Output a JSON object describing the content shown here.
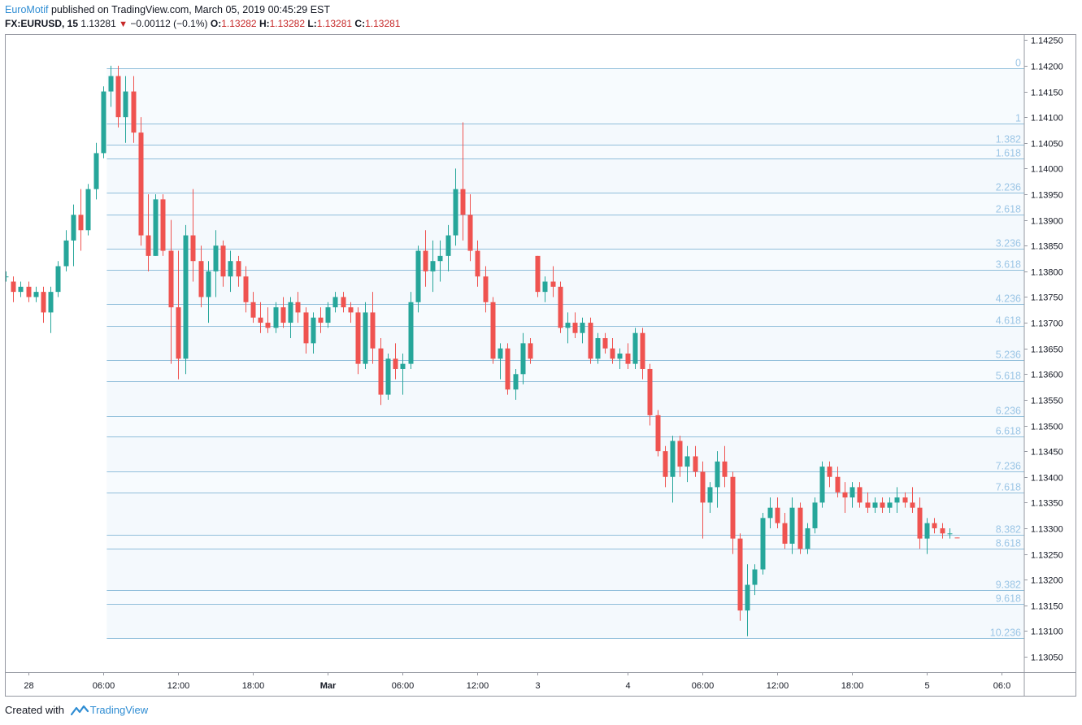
{
  "header": {
    "author": "EuroMotif",
    "published_text": "published on TradingView.com, March 05, 2019 00:45:29 EST",
    "symbol_interval": "FX:EURUSD, 15",
    "last_price": "1.13281",
    "change_arrow": "▼",
    "change": "−0.00112 (−0.1%)",
    "o_label": "O:",
    "o_value": "1.13282",
    "h_label": "H:",
    "h_value": "1.13282",
    "l_label": "L:",
    "l_value": "1.13281",
    "c_label": "C:",
    "c_value": "1.13281"
  },
  "footer": {
    "created_with": "Created with",
    "brand": "TradingView"
  },
  "colors": {
    "up": "#26a69a",
    "down": "#ef5350",
    "fib_line": "#91bfdb",
    "fib_label": "#9cc6e6",
    "fib_band": "#f4f9fd",
    "axis_text": "#131722",
    "brand_blue": "#2f8dd3"
  },
  "chart_data": {
    "type": "candlestick",
    "symbol": "FX:EURUSD",
    "interval": "15",
    "y_axis": {
      "range": [
        1.1302,
        1.1426
      ],
      "ticks": [
        "1.14250",
        "1.14200",
        "1.14150",
        "1.14100",
        "1.14050",
        "1.14000",
        "1.13950",
        "1.13900",
        "1.13850",
        "1.13800",
        "1.13750",
        "1.13700",
        "1.13650",
        "1.13600",
        "1.13550",
        "1.13500",
        "1.13450",
        "1.13400",
        "1.13350",
        "1.13300",
        "1.13250",
        "1.13200",
        "1.13150",
        "1.13100",
        "1.13050"
      ]
    },
    "x_axis": {
      "bar_range": [
        -3,
        133
      ],
      "ticks": [
        {
          "label": "28",
          "bar": 0,
          "bold": false
        },
        {
          "label": "06:00",
          "bar": 10,
          "bold": false
        },
        {
          "label": "12:00",
          "bar": 20,
          "bold": false
        },
        {
          "label": "18:00",
          "bar": 30,
          "bold": false
        },
        {
          "label": "Mar",
          "bar": 40,
          "bold": true
        },
        {
          "label": "06:00",
          "bar": 50,
          "bold": false
        },
        {
          "label": "12:00",
          "bar": 60,
          "bold": false
        },
        {
          "label": "3",
          "bar": 68,
          "bold": false
        },
        {
          "label": "4",
          "bar": 80,
          "bold": false
        },
        {
          "label": "06:00",
          "bar": 90,
          "bold": false
        },
        {
          "label": "12:00",
          "bar": 100,
          "bold": false
        },
        {
          "label": "18:00",
          "bar": 110,
          "bold": false
        },
        {
          "label": "5",
          "bar": 120,
          "bold": false
        },
        {
          "label": "06:0",
          "bar": 130,
          "bold": false
        }
      ]
    },
    "fibonacci": {
      "start_bar": 11,
      "levels": [
        {
          "label": "0",
          "price": 1.14195
        },
        {
          "label": "1",
          "price": 1.14087
        },
        {
          "label": "1.382",
          "price": 1.14046
        },
        {
          "label": "1.618",
          "price": 1.1402
        },
        {
          "label": "2.236",
          "price": 1.13953
        },
        {
          "label": "2.618",
          "price": 1.13911
        },
        {
          "label": "3.236",
          "price": 1.13844
        },
        {
          "label": "3.618",
          "price": 1.13803
        },
        {
          "label": "4.236",
          "price": 1.13736
        },
        {
          "label": "4.618",
          "price": 1.13694
        },
        {
          "label": "5.236",
          "price": 1.13627
        },
        {
          "label": "5.618",
          "price": 1.13586
        },
        {
          "label": "6.236",
          "price": 1.13519
        },
        {
          "label": "6.618",
          "price": 1.13478
        },
        {
          "label": "7.236",
          "price": 1.13411
        },
        {
          "label": "7.618",
          "price": 1.1337
        },
        {
          "label": "8.382",
          "price": 1.13287
        },
        {
          "label": "8.618",
          "price": 1.13261
        },
        {
          "label": "9.382",
          "price": 1.13179
        },
        {
          "label": "9.618",
          "price": 1.13153
        },
        {
          "label": "10.236",
          "price": 1.13086
        }
      ]
    },
    "candles": [
      {
        "i": -3,
        "o": 1.1379,
        "h": 1.138,
        "l": 1.1378,
        "c": 1.1379
      },
      {
        "i": -2,
        "o": 1.1378,
        "h": 1.1379,
        "l": 1.1374,
        "c": 1.1376
      },
      {
        "i": -1,
        "o": 1.1376,
        "h": 1.1378,
        "l": 1.1375,
        "c": 1.1377
      },
      {
        "i": 0,
        "o": 1.1377,
        "h": 1.1378,
        "l": 1.1374,
        "c": 1.1375
      },
      {
        "i": 1,
        "o": 1.1375,
        "h": 1.1377,
        "l": 1.1374,
        "c": 1.1376
      },
      {
        "i": 2,
        "o": 1.1376,
        "h": 1.1377,
        "l": 1.137,
        "c": 1.1372
      },
      {
        "i": 3,
        "o": 1.1372,
        "h": 1.1377,
        "l": 1.1368,
        "c": 1.1376
      },
      {
        "i": 4,
        "o": 1.1376,
        "h": 1.1382,
        "l": 1.1375,
        "c": 1.1381
      },
      {
        "i": 5,
        "o": 1.1381,
        "h": 1.1388,
        "l": 1.138,
        "c": 1.1386
      },
      {
        "i": 6,
        "o": 1.1386,
        "h": 1.1393,
        "l": 1.1381,
        "c": 1.1391
      },
      {
        "i": 7,
        "o": 1.1391,
        "h": 1.1396,
        "l": 1.1384,
        "c": 1.1388
      },
      {
        "i": 8,
        "o": 1.1388,
        "h": 1.1397,
        "l": 1.1387,
        "c": 1.1396
      },
      {
        "i": 9,
        "o": 1.1396,
        "h": 1.1405,
        "l": 1.1394,
        "c": 1.1403
      },
      {
        "i": 10,
        "o": 1.1403,
        "h": 1.1416,
        "l": 1.1402,
        "c": 1.1415
      },
      {
        "i": 11,
        "o": 1.1415,
        "h": 1.142,
        "l": 1.1412,
        "c": 1.1418
      },
      {
        "i": 12,
        "o": 1.1418,
        "h": 1.142,
        "l": 1.1408,
        "c": 1.141
      },
      {
        "i": 13,
        "o": 1.141,
        "h": 1.1418,
        "l": 1.1405,
        "c": 1.1415
      },
      {
        "i": 14,
        "o": 1.1415,
        "h": 1.1418,
        "l": 1.1405,
        "c": 1.1407
      },
      {
        "i": 15,
        "o": 1.1407,
        "h": 1.141,
        "l": 1.1385,
        "c": 1.1387
      },
      {
        "i": 16,
        "o": 1.1387,
        "h": 1.1395,
        "l": 1.138,
        "c": 1.1383
      },
      {
        "i": 17,
        "o": 1.1383,
        "h": 1.1395,
        "l": 1.1383,
        "c": 1.1394
      },
      {
        "i": 18,
        "o": 1.1394,
        "h": 1.1395,
        "l": 1.1383,
        "c": 1.1384
      },
      {
        "i": 19,
        "o": 1.1384,
        "h": 1.139,
        "l": 1.1362,
        "c": 1.1373
      },
      {
        "i": 20,
        "o": 1.1373,
        "h": 1.1384,
        "l": 1.1359,
        "c": 1.1363
      },
      {
        "i": 21,
        "o": 1.1363,
        "h": 1.1389,
        "l": 1.136,
        "c": 1.1387
      },
      {
        "i": 22,
        "o": 1.1387,
        "h": 1.1396,
        "l": 1.1378,
        "c": 1.1382
      },
      {
        "i": 23,
        "o": 1.1382,
        "h": 1.1385,
        "l": 1.1373,
        "c": 1.1375
      },
      {
        "i": 24,
        "o": 1.1375,
        "h": 1.1382,
        "l": 1.137,
        "c": 1.138
      },
      {
        "i": 25,
        "o": 1.138,
        "h": 1.1388,
        "l": 1.1375,
        "c": 1.1385
      },
      {
        "i": 26,
        "o": 1.1385,
        "h": 1.1386,
        "l": 1.1377,
        "c": 1.1379
      },
      {
        "i": 27,
        "o": 1.1379,
        "h": 1.1384,
        "l": 1.1376,
        "c": 1.1382
      },
      {
        "i": 28,
        "o": 1.1382,
        "h": 1.1383,
        "l": 1.1377,
        "c": 1.1379
      },
      {
        "i": 29,
        "o": 1.1379,
        "h": 1.1381,
        "l": 1.1372,
        "c": 1.1374
      },
      {
        "i": 30,
        "o": 1.1374,
        "h": 1.1376,
        "l": 1.137,
        "c": 1.1371
      },
      {
        "i": 31,
        "o": 1.1371,
        "h": 1.1374,
        "l": 1.1368,
        "c": 1.137
      },
      {
        "i": 32,
        "o": 1.137,
        "h": 1.1373,
        "l": 1.1368,
        "c": 1.1369
      },
      {
        "i": 33,
        "o": 1.1369,
        "h": 1.1374,
        "l": 1.1368,
        "c": 1.1373
      },
      {
        "i": 34,
        "o": 1.1373,
        "h": 1.1375,
        "l": 1.1369,
        "c": 1.137
      },
      {
        "i": 35,
        "o": 1.137,
        "h": 1.1375,
        "l": 1.1367,
        "c": 1.1374
      },
      {
        "i": 36,
        "o": 1.1374,
        "h": 1.1376,
        "l": 1.137,
        "c": 1.1372
      },
      {
        "i": 37,
        "o": 1.1372,
        "h": 1.1373,
        "l": 1.1364,
        "c": 1.1366
      },
      {
        "i": 38,
        "o": 1.1366,
        "h": 1.1372,
        "l": 1.1364,
        "c": 1.1371
      },
      {
        "i": 39,
        "o": 1.1371,
        "h": 1.1373,
        "l": 1.1368,
        "c": 1.137
      },
      {
        "i": 40,
        "o": 1.137,
        "h": 1.1374,
        "l": 1.1369,
        "c": 1.1373
      },
      {
        "i": 41,
        "o": 1.1373,
        "h": 1.1376,
        "l": 1.1372,
        "c": 1.1375
      },
      {
        "i": 42,
        "o": 1.1375,
        "h": 1.1376,
        "l": 1.1372,
        "c": 1.1373
      },
      {
        "i": 43,
        "o": 1.1373,
        "h": 1.1374,
        "l": 1.137,
        "c": 1.1372
      },
      {
        "i": 44,
        "o": 1.1372,
        "h": 1.1373,
        "l": 1.136,
        "c": 1.1362
      },
      {
        "i": 45,
        "o": 1.1362,
        "h": 1.1374,
        "l": 1.1361,
        "c": 1.1372
      },
      {
        "i": 46,
        "o": 1.1372,
        "h": 1.1376,
        "l": 1.1362,
        "c": 1.1365
      },
      {
        "i": 47,
        "o": 1.1365,
        "h": 1.1367,
        "l": 1.1354,
        "c": 1.1356
      },
      {
        "i": 48,
        "o": 1.1356,
        "h": 1.1364,
        "l": 1.1355,
        "c": 1.1363
      },
      {
        "i": 49,
        "o": 1.1363,
        "h": 1.1366,
        "l": 1.1359,
        "c": 1.1361
      },
      {
        "i": 50,
        "o": 1.1361,
        "h": 1.1364,
        "l": 1.1356,
        "c": 1.1362
      },
      {
        "i": 51,
        "o": 1.1362,
        "h": 1.1376,
        "l": 1.1361,
        "c": 1.1374
      },
      {
        "i": 52,
        "o": 1.1374,
        "h": 1.1385,
        "l": 1.1372,
        "c": 1.1384
      },
      {
        "i": 53,
        "o": 1.1384,
        "h": 1.1388,
        "l": 1.1377,
        "c": 1.138
      },
      {
        "i": 54,
        "o": 1.138,
        "h": 1.1386,
        "l": 1.1376,
        "c": 1.1382
      },
      {
        "i": 55,
        "o": 1.1382,
        "h": 1.1386,
        "l": 1.1378,
        "c": 1.1383
      },
      {
        "i": 56,
        "o": 1.1383,
        "h": 1.1389,
        "l": 1.138,
        "c": 1.1387
      },
      {
        "i": 57,
        "o": 1.1387,
        "h": 1.14,
        "l": 1.1385,
        "c": 1.1396
      },
      {
        "i": 58,
        "o": 1.1396,
        "h": 1.1409,
        "l": 1.1386,
        "c": 1.1391
      },
      {
        "i": 59,
        "o": 1.1391,
        "h": 1.1395,
        "l": 1.1382,
        "c": 1.1384
      },
      {
        "i": 60,
        "o": 1.1384,
        "h": 1.1386,
        "l": 1.1377,
        "c": 1.1379
      },
      {
        "i": 61,
        "o": 1.1379,
        "h": 1.1381,
        "l": 1.1372,
        "c": 1.1374
      },
      {
        "i": 62,
        "o": 1.1374,
        "h": 1.1375,
        "l": 1.1362,
        "c": 1.1363
      },
      {
        "i": 63,
        "o": 1.1363,
        "h": 1.1366,
        "l": 1.1359,
        "c": 1.1365
      },
      {
        "i": 64,
        "o": 1.1365,
        "h": 1.1366,
        "l": 1.1356,
        "c": 1.1357
      },
      {
        "i": 65,
        "o": 1.1357,
        "h": 1.1361,
        "l": 1.1355,
        "c": 1.136
      },
      {
        "i": 66,
        "o": 1.136,
        "h": 1.1368,
        "l": 1.1358,
        "c": 1.1366
      },
      {
        "i": 67,
        "o": 1.1366,
        "h": 1.1367,
        "l": 1.1362,
        "c": 1.1363
      },
      {
        "i": 68,
        "o": 1.1383,
        "h": 1.1383,
        "l": 1.1375,
        "c": 1.1376
      },
      {
        "i": 69,
        "o": 1.1376,
        "h": 1.1379,
        "l": 1.1374,
        "c": 1.1378
      },
      {
        "i": 70,
        "o": 1.1378,
        "h": 1.1381,
        "l": 1.1375,
        "c": 1.1377
      },
      {
        "i": 71,
        "o": 1.1377,
        "h": 1.1378,
        "l": 1.1368,
        "c": 1.1369
      },
      {
        "i": 72,
        "o": 1.1369,
        "h": 1.1372,
        "l": 1.1366,
        "c": 1.137
      },
      {
        "i": 73,
        "o": 1.137,
        "h": 1.1372,
        "l": 1.1367,
        "c": 1.1368
      },
      {
        "i": 74,
        "o": 1.1368,
        "h": 1.1371,
        "l": 1.1366,
        "c": 1.137
      },
      {
        "i": 75,
        "o": 1.137,
        "h": 1.1371,
        "l": 1.1362,
        "c": 1.1363
      },
      {
        "i": 76,
        "o": 1.1363,
        "h": 1.1368,
        "l": 1.1362,
        "c": 1.1367
      },
      {
        "i": 77,
        "o": 1.1367,
        "h": 1.1368,
        "l": 1.1364,
        "c": 1.1365
      },
      {
        "i": 78,
        "o": 1.1365,
        "h": 1.1367,
        "l": 1.1362,
        "c": 1.1363
      },
      {
        "i": 79,
        "o": 1.1363,
        "h": 1.1365,
        "l": 1.1361,
        "c": 1.1364
      },
      {
        "i": 80,
        "o": 1.1364,
        "h": 1.1366,
        "l": 1.1361,
        "c": 1.1362
      },
      {
        "i": 81,
        "o": 1.1362,
        "h": 1.1369,
        "l": 1.1361,
        "c": 1.1368
      },
      {
        "i": 82,
        "o": 1.1368,
        "h": 1.1369,
        "l": 1.1359,
        "c": 1.1361
      },
      {
        "i": 83,
        "o": 1.1361,
        "h": 1.1362,
        "l": 1.135,
        "c": 1.1352
      },
      {
        "i": 84,
        "o": 1.1352,
        "h": 1.1353,
        "l": 1.1344,
        "c": 1.1345
      },
      {
        "i": 85,
        "o": 1.1345,
        "h": 1.1346,
        "l": 1.1338,
        "c": 1.134
      },
      {
        "i": 86,
        "o": 1.134,
        "h": 1.1348,
        "l": 1.1335,
        "c": 1.1347
      },
      {
        "i": 87,
        "o": 1.1347,
        "h": 1.1348,
        "l": 1.134,
        "c": 1.1342
      },
      {
        "i": 88,
        "o": 1.1342,
        "h": 1.1346,
        "l": 1.1339,
        "c": 1.1344
      },
      {
        "i": 89,
        "o": 1.1344,
        "h": 1.1346,
        "l": 1.134,
        "c": 1.1341
      },
      {
        "i": 90,
        "o": 1.1341,
        "h": 1.1343,
        "l": 1.1328,
        "c": 1.1335
      },
      {
        "i": 91,
        "o": 1.1335,
        "h": 1.1339,
        "l": 1.1333,
        "c": 1.1338
      },
      {
        "i": 92,
        "o": 1.1338,
        "h": 1.1345,
        "l": 1.1334,
        "c": 1.1343
      },
      {
        "i": 93,
        "o": 1.1343,
        "h": 1.1346,
        "l": 1.1338,
        "c": 1.134
      },
      {
        "i": 94,
        "o": 1.134,
        "h": 1.1341,
        "l": 1.1325,
        "c": 1.1328
      },
      {
        "i": 95,
        "o": 1.1328,
        "h": 1.1329,
        "l": 1.1312,
        "c": 1.1314
      },
      {
        "i": 96,
        "o": 1.1314,
        "h": 1.1323,
        "l": 1.1309,
        "c": 1.1319
      },
      {
        "i": 97,
        "o": 1.1319,
        "h": 1.1323,
        "l": 1.1317,
        "c": 1.1322
      },
      {
        "i": 98,
        "o": 1.1322,
        "h": 1.1333,
        "l": 1.1321,
        "c": 1.1332
      },
      {
        "i": 99,
        "o": 1.1332,
        "h": 1.1336,
        "l": 1.133,
        "c": 1.1334
      },
      {
        "i": 100,
        "o": 1.1334,
        "h": 1.1336,
        "l": 1.133,
        "c": 1.1331
      },
      {
        "i": 101,
        "o": 1.1331,
        "h": 1.1333,
        "l": 1.1326,
        "c": 1.1327
      },
      {
        "i": 102,
        "o": 1.1327,
        "h": 1.1336,
        "l": 1.1325,
        "c": 1.1334
      },
      {
        "i": 103,
        "o": 1.1334,
        "h": 1.1335,
        "l": 1.1325,
        "c": 1.1326
      },
      {
        "i": 104,
        "o": 1.1326,
        "h": 1.1331,
        "l": 1.1325,
        "c": 1.133
      },
      {
        "i": 105,
        "o": 1.133,
        "h": 1.1336,
        "l": 1.1329,
        "c": 1.1335
      },
      {
        "i": 106,
        "o": 1.1335,
        "h": 1.1343,
        "l": 1.1334,
        "c": 1.1342
      },
      {
        "i": 107,
        "o": 1.1342,
        "h": 1.1343,
        "l": 1.1338,
        "c": 1.134
      },
      {
        "i": 108,
        "o": 1.134,
        "h": 1.1342,
        "l": 1.1336,
        "c": 1.1337
      },
      {
        "i": 109,
        "o": 1.1337,
        "h": 1.1339,
        "l": 1.1333,
        "c": 1.1336
      },
      {
        "i": 110,
        "o": 1.1336,
        "h": 1.1339,
        "l": 1.1334,
        "c": 1.1338
      },
      {
        "i": 111,
        "o": 1.1338,
        "h": 1.1339,
        "l": 1.1334,
        "c": 1.1335
      },
      {
        "i": 112,
        "o": 1.1335,
        "h": 1.1337,
        "l": 1.1333,
        "c": 1.1334
      },
      {
        "i": 113,
        "o": 1.1334,
        "h": 1.1336,
        "l": 1.1333,
        "c": 1.1335
      },
      {
        "i": 114,
        "o": 1.1335,
        "h": 1.1336,
        "l": 1.1333,
        "c": 1.1334
      },
      {
        "i": 115,
        "o": 1.1334,
        "h": 1.1336,
        "l": 1.1333,
        "c": 1.1335
      },
      {
        "i": 116,
        "o": 1.1335,
        "h": 1.1338,
        "l": 1.1333,
        "c": 1.1336
      },
      {
        "i": 117,
        "o": 1.1336,
        "h": 1.1337,
        "l": 1.1334,
        "c": 1.1335
      },
      {
        "i": 118,
        "o": 1.1335,
        "h": 1.1338,
        "l": 1.1333,
        "c": 1.1334
      },
      {
        "i": 119,
        "o": 1.1334,
        "h": 1.1336,
        "l": 1.1326,
        "c": 1.1328
      },
      {
        "i": 120,
        "o": 1.1328,
        "h": 1.1332,
        "l": 1.1325,
        "c": 1.1331
      },
      {
        "i": 121,
        "o": 1.1331,
        "h": 1.1332,
        "l": 1.1329,
        "c": 1.133
      },
      {
        "i": 122,
        "o": 1.133,
        "h": 1.1331,
        "l": 1.1328,
        "c": 1.1329
      },
      {
        "i": 123,
        "o": 1.1329,
        "h": 1.133,
        "l": 1.1328,
        "c": 1.1329
      },
      {
        "i": 124,
        "o": 1.13282,
        "h": 1.13282,
        "l": 1.13281,
        "c": 1.13281
      }
    ]
  }
}
